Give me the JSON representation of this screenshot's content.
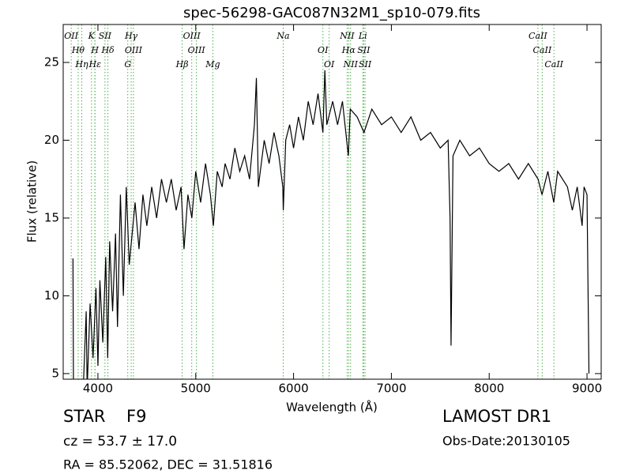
{
  "chart_data": {
    "type": "line",
    "title": "spec-56298-GAC087N32M1_sp10-079.fits",
    "x_label": "Wavelength (Å)",
    "y_label": "Flux (relative)",
    "xlim": [
      3645,
      9145
    ],
    "ylim": [
      4.64,
      27.44
    ],
    "xticks": [
      4000,
      5000,
      6000,
      7000,
      8000,
      9000
    ],
    "yticks": [
      5,
      10,
      15,
      20,
      25
    ],
    "series": [
      {
        "name": "flux",
        "color": "#000000",
        "x": [
          3745,
          3750,
          3850,
          3880,
          3890,
          3920,
          3950,
          3980,
          4000,
          4020,
          4050,
          4080,
          4100,
          4120,
          4150,
          4180,
          4200,
          4230,
          4260,
          4290,
          4320,
          4350,
          4380,
          4420,
          4460,
          4500,
          4550,
          4600,
          4650,
          4700,
          4750,
          4800,
          4850,
          4880,
          4920,
          4960,
          5000,
          5050,
          5100,
          5150,
          5180,
          5220,
          5270,
          5300,
          5350,
          5400,
          5450,
          5500,
          5550,
          5600,
          5620,
          5640,
          5700,
          5750,
          5800,
          5850,
          5890,
          5895,
          5920,
          5960,
          6000,
          6050,
          6100,
          6150,
          6200,
          6250,
          6300,
          6320,
          6340,
          6400,
          6450,
          6500,
          6560,
          6580,
          6650,
          6720,
          6800,
          6900,
          7000,
          7100,
          7200,
          7300,
          7400,
          7500,
          7580,
          7600,
          7610,
          7630,
          7700,
          7800,
          7900,
          8000,
          8100,
          8200,
          8300,
          8400,
          8500,
          8540,
          8600,
          8660,
          8700,
          8800,
          8850,
          8900,
          8950,
          8970,
          9000,
          9020
        ],
        "values": [
          12.4,
          4.0,
          4.0,
          9.0,
          4.0,
          9.5,
          6.0,
          10.5,
          5.5,
          11.0,
          7.0,
          12.5,
          6.0,
          13.5,
          9.0,
          14.0,
          8.0,
          16.5,
          10.0,
          17.0,
          12.0,
          14.0,
          16.0,
          13.0,
          16.5,
          14.5,
          17.0,
          15.0,
          17.5,
          16.0,
          17.5,
          15.5,
          17.0,
          13.0,
          16.5,
          15.0,
          18.0,
          16.0,
          18.5,
          16.5,
          14.5,
          18.0,
          17.0,
          18.5,
          17.5,
          19.5,
          18.0,
          19.0,
          17.5,
          21.0,
          24.0,
          17.0,
          20.0,
          18.5,
          20.5,
          19.0,
          17.0,
          15.5,
          20.0,
          21.0,
          19.5,
          21.5,
          20.0,
          22.5,
          21.0,
          23.0,
          20.5,
          24.5,
          21.0,
          22.5,
          21.0,
          22.5,
          19.0,
          22.0,
          21.5,
          20.5,
          22.0,
          21.0,
          21.5,
          20.5,
          21.5,
          20.0,
          20.5,
          19.5,
          20.0,
          15.0,
          6.8,
          19.0,
          20.0,
          19.0,
          19.5,
          18.5,
          18.0,
          18.5,
          17.5,
          18.5,
          17.5,
          16.5,
          18.0,
          16.0,
          18.0,
          17.0,
          15.5,
          17.0,
          14.5,
          17.0,
          16.5,
          5.0
        ]
      }
    ],
    "line_color": "#4daf4a",
    "spectral_lines": [
      {
        "label": "OII",
        "wavelength": 3727
      },
      {
        "label": "Hθ",
        "wavelength": 3798
      },
      {
        "label": "Hη",
        "wavelength": 3835
      },
      {
        "label": "K",
        "wavelength": 3934
      },
      {
        "label": "H",
        "wavelength": 3969
      },
      {
        "label": "Hε",
        "wavelength": 3970
      },
      {
        "label": "SII",
        "wavelength": 4072
      },
      {
        "label": "Hδ",
        "wavelength": 4102
      },
      {
        "label": "G",
        "wavelength": 4305
      },
      {
        "label": "Hγ",
        "wavelength": 4340
      },
      {
        "label": "OIII",
        "wavelength": 4363
      },
      {
        "label": "Hβ",
        "wavelength": 4861
      },
      {
        "label": "OIII",
        "wavelength": 4959
      },
      {
        "label": "OIII",
        "wavelength": 5007
      },
      {
        "label": "Mg",
        "wavelength": 5175
      },
      {
        "label": "Na",
        "wavelength": 5894
      },
      {
        "label": "OI",
        "wavelength": 6300
      },
      {
        "label": "OI",
        "wavelength": 6364
      },
      {
        "label": "NII",
        "wavelength": 6548
      },
      {
        "label": "Hα",
        "wavelength": 6563
      },
      {
        "label": "NII",
        "wavelength": 6583
      },
      {
        "label": "Li",
        "wavelength": 6708
      },
      {
        "label": "SII",
        "wavelength": 6717
      },
      {
        "label": "SII",
        "wavelength": 6731
      },
      {
        "label": "CaII",
        "wavelength": 8498
      },
      {
        "label": "CaII",
        "wavelength": 8542
      },
      {
        "label": "CaII",
        "wavelength": 8662
      }
    ],
    "annotations": {
      "class": "STAR",
      "subclass": "F9",
      "redshift": "cz = 53.7 ± 17.0",
      "coords": "RA = 85.52062, DEC = 31.51816",
      "survey": "LAMOST DR1",
      "obs_date": "Obs-Date:20130105"
    }
  }
}
